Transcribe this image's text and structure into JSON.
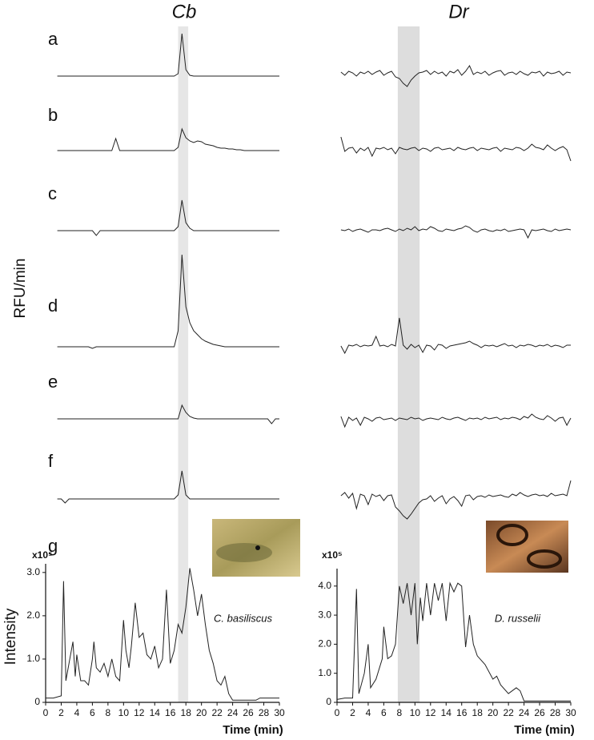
{
  "chart_data": [
    {
      "type": "trace",
      "title": "Cb",
      "ylabel": "RFU/min",
      "panel_labels": [
        "a",
        "b",
        "c",
        "d",
        "e",
        "f"
      ],
      "color": "#222222",
      "x": [
        1.5,
        2,
        2.5,
        3,
        3.5,
        4,
        4.5,
        5,
        5.5,
        6,
        6.5,
        7,
        7.5,
        8,
        8.5,
        9,
        9.5,
        10,
        10.5,
        11,
        11.5,
        12,
        12.5,
        13,
        13.5,
        14,
        14.5,
        15,
        15.5,
        16,
        16.5,
        17,
        17.5,
        18,
        18.5,
        19,
        19.5,
        20,
        20.5,
        21,
        21.5,
        22,
        22.5,
        23,
        23.5,
        24,
        24.5,
        25,
        25.5,
        26,
        26.5,
        27,
        27.5,
        28,
        28.5,
        29,
        29.5,
        30
      ],
      "series": [
        {
          "values": [
            0,
            0,
            0,
            0,
            0,
            0,
            0,
            0,
            0,
            0,
            0,
            0,
            0,
            0,
            0,
            0,
            0,
            0,
            0,
            0,
            0,
            0,
            0,
            0,
            0,
            0,
            0,
            0,
            0,
            0,
            0,
            0.3,
            5.3,
            0.8,
            0.1,
            0,
            0,
            0,
            0,
            0,
            0,
            0,
            0,
            0,
            0,
            0,
            0,
            0,
            0,
            0,
            0,
            0,
            0,
            0,
            0,
            0,
            0,
            0
          ]
        },
        {
          "values": [
            0,
            0,
            0,
            0,
            0,
            0,
            0,
            0,
            0,
            0,
            0,
            0,
            0,
            0,
            0,
            1.5,
            0,
            0,
            0,
            0,
            0,
            0,
            0,
            0,
            0,
            0,
            0,
            0,
            0,
            0,
            0,
            0.4,
            2.7,
            1.6,
            1.2,
            1.0,
            1.2,
            1.1,
            0.8,
            0.7,
            0.6,
            0.4,
            0.3,
            0.3,
            0.2,
            0.2,
            0.1,
            0.1,
            0,
            0,
            0,
            0,
            0,
            0,
            0,
            0,
            0,
            0
          ]
        },
        {
          "values": [
            0,
            0,
            0,
            0,
            0,
            0,
            0,
            0,
            0,
            0,
            -0.6,
            0,
            0,
            0,
            0,
            0,
            0,
            0,
            0,
            0,
            0,
            0,
            0,
            0,
            0,
            0,
            0,
            0,
            0,
            0,
            0,
            0.5,
            3.8,
            1.0,
            0.3,
            0,
            0,
            0,
            0,
            0,
            0,
            0,
            0,
            0,
            0,
            0,
            0,
            0,
            0,
            0,
            0,
            0,
            0,
            0,
            0,
            0,
            0,
            0
          ]
        },
        {
          "values": [
            0,
            0,
            0,
            0,
            0,
            0,
            0,
            0,
            0,
            -0.2,
            0,
            0,
            0,
            0,
            0,
            0,
            0,
            0,
            0,
            0,
            0,
            0,
            0,
            0,
            0,
            0,
            0,
            0,
            0,
            0,
            0,
            2,
            11.5,
            5,
            3,
            2,
            1.5,
            1,
            0.7,
            0.5,
            0.3,
            0.2,
            0.1,
            0,
            0,
            0,
            0,
            0,
            0,
            0,
            0,
            0,
            0,
            0,
            0,
            0,
            0,
            0
          ]
        },
        {
          "values": [
            0,
            0,
            0,
            0,
            0,
            0,
            0,
            0,
            0,
            0,
            0,
            0,
            0,
            0,
            0,
            0,
            0,
            0,
            0,
            0,
            0,
            0,
            0,
            0,
            0,
            0,
            0,
            0,
            0,
            0,
            0,
            0,
            1.7,
            0.8,
            0.3,
            0.1,
            0,
            0,
            0,
            0,
            0,
            0,
            0,
            0,
            0,
            0,
            0,
            0,
            0,
            0,
            0,
            0,
            0,
            0,
            0,
            -0.6,
            0,
            0
          ]
        },
        {
          "values": [
            0,
            0,
            -0.5,
            0,
            0,
            0,
            0,
            0,
            0,
            0,
            0,
            0,
            0,
            0,
            0,
            0,
            0,
            0,
            0,
            0,
            0,
            0,
            0,
            0,
            0,
            0,
            0,
            0,
            0,
            0,
            0,
            0.5,
            3.5,
            0.5,
            0,
            0,
            0,
            0,
            0,
            0,
            0,
            0,
            0,
            0,
            0,
            0,
            0,
            0,
            0,
            0,
            0,
            0,
            0,
            0,
            0,
            0,
            0,
            0
          ]
        }
      ]
    },
    {
      "type": "trace",
      "title": "Dr",
      "color": "#222222",
      "x": [
        0.5,
        1,
        1.5,
        2,
        2.5,
        3,
        3.5,
        4,
        4.5,
        5,
        5.5,
        6,
        6.5,
        7,
        7.5,
        8,
        8.5,
        9,
        9.5,
        10,
        10.5,
        11,
        11.5,
        12,
        12.5,
        13,
        13.5,
        14,
        14.5,
        15,
        15.5,
        16,
        16.5,
        17,
        17.5,
        18,
        18.5,
        19,
        19.5,
        20,
        20.5,
        21,
        21.5,
        22,
        22.5,
        23,
        23.5,
        24,
        24.5,
        25,
        25.5,
        26,
        26.5,
        27,
        27.5,
        28,
        28.5,
        29,
        29.5,
        30
      ],
      "series": [
        {
          "values": [
            0.2,
            -0.2,
            0.3,
            0.1,
            -0.3,
            0.2,
            0,
            0.3,
            -0.1,
            0.2,
            0.4,
            -0.2,
            0.1,
            0.3,
            -0.4,
            -0.6,
            -1.2,
            -1.6,
            -0.8,
            -0.3,
            0.1,
            0.2,
            0.4,
            -0.1,
            0.3,
            0,
            0.2,
            -0.3,
            0.3,
            0.1,
            0.5,
            -0.2,
            0.3,
            1.0,
            -0.1,
            0.2,
            0,
            0.3,
            -0.2,
            0.1,
            0.3,
            0.4,
            -0.2,
            0.1,
            0.2,
            -0.1,
            0.3,
            0,
            -0.2,
            0.2,
            0.1,
            0.3,
            -0.3,
            0.2,
            0,
            0.1,
            0.3,
            -0.2,
            0.2,
            0.1
          ]
        },
        {
          "values": [
            1.5,
            -0.3,
            0.1,
            0.2,
            -0.5,
            0.1,
            -0.2,
            0.2,
            -0.9,
            0.1,
            0,
            0.2,
            -0.1,
            0.1,
            -0.6,
            0.2,
            0,
            -0.1,
            0.1,
            0.2,
            -0.2,
            0.1,
            0,
            -0.3,
            0.1,
            0.2,
            -0.1,
            0,
            0.1,
            -0.2,
            0.2,
            0,
            -0.1,
            0.1,
            0.2,
            -0.2,
            0.1,
            0,
            -0.1,
            0.1,
            0.2,
            -0.3,
            0.1,
            0,
            -0.1,
            0.2,
            0.1,
            -0.2,
            0.1,
            0.6,
            0.2,
            0.1,
            -0.1,
            0.5,
            0.1,
            -0.2,
            0.1,
            0.3,
            -0.1,
            -1.5
          ]
        },
        {
          "values": [
            0.1,
            0,
            0.2,
            -0.1,
            0.1,
            0.2,
            0,
            -0.2,
            0.1,
            0.1,
            0,
            0.2,
            0.3,
            0.1,
            -0.1,
            0.2,
            0,
            0.3,
            0.1,
            0.5,
            0,
            0.2,
            0.1,
            0.5,
            0.3,
            0,
            -0.1,
            0.2,
            0.1,
            0,
            0.2,
            0.3,
            0.6,
            0.4,
            0,
            -0.2,
            0.1,
            0.2,
            0,
            -0.1,
            0.1,
            0,
            0.2,
            -0.1,
            0,
            0.1,
            0.2,
            0.1,
            -0.9,
            0.1,
            0,
            0.1,
            0.2,
            0,
            -0.1,
            0.2,
            0,
            0.1,
            0.2,
            0.1
          ]
        },
        {
          "values": [
            0,
            -0.9,
            0.1,
            0,
            0.2,
            -0.1,
            0.1,
            0,
            0.1,
            1.2,
            0,
            0.1,
            -0.1,
            0.2,
            0,
            3.5,
            0.1,
            -0.4,
            0.2,
            -0.2,
            0.1,
            -0.8,
            0.1,
            0,
            -0.5,
            0.2,
            0.1,
            -0.3,
            0,
            0.1,
            0.2,
            0.3,
            0.4,
            0.6,
            0.3,
            0.1,
            -0.2,
            0.1,
            0,
            0.1,
            -0.1,
            0.1,
            0.3,
            0,
            0.1,
            -0.2,
            0.1,
            0,
            0.2,
            0.1,
            -0.1,
            0.1,
            0,
            0.2,
            -0.1,
            0.1,
            0,
            -0.2,
            0.1,
            0.1
          ]
        },
        {
          "values": [
            0.3,
            -1.0,
            0.2,
            -0.2,
            0.1,
            -0.8,
            0.2,
            0,
            -0.3,
            0.1,
            0.2,
            -0.1,
            0,
            0.1,
            -0.2,
            0.1,
            0,
            -0.1,
            0.2,
            0,
            0.1,
            -0.2,
            0,
            0.1,
            0,
            -0.1,
            0.2,
            0,
            -0.1,
            0.1,
            0.2,
            0,
            -0.2,
            0.1,
            0,
            0.1,
            -0.1,
            0.2,
            0,
            0.1,
            0.2,
            -0.1,
            0.1,
            0,
            0.2,
            0.1,
            -0.1,
            0.3,
            0.1,
            0.6,
            0.2,
            0,
            -0.1,
            0.4,
            0.1,
            -0.3,
            0.1,
            0.2,
            -0.8,
            0.1
          ]
        },
        {
          "values": [
            0.1,
            0.5,
            -0.2,
            0.4,
            -1.5,
            0.3,
            0.1,
            -1.0,
            0.3,
            0,
            0.2,
            -0.5,
            0.1,
            0.2,
            -1.3,
            -1.8,
            -2.4,
            -2.8,
            -2.2,
            -1.5,
            -0.8,
            -0.4,
            -0.3,
            0.1,
            -0.6,
            -0.2,
            0.1,
            -0.9,
            -0.3,
            0,
            -0.5,
            -1.2,
            0.1,
            0.2,
            -0.4,
            0,
            0.1,
            -0.1,
            0.2,
            0,
            0.1,
            0.2,
            0,
            -0.1,
            0.3,
            0.1,
            0.5,
            0.2,
            0,
            0.2,
            0.3,
            0.1,
            0.2,
            0,
            0.4,
            0.1,
            0.2,
            0.3,
            0.1,
            2.0
          ]
        }
      ]
    },
    {
      "type": "line",
      "panel_label": "g",
      "ylabel": "Intensity",
      "scale_label": "x10⁵",
      "xlabel": "Time (min)",
      "annotation": "C. basiliscus",
      "color": "#222222",
      "x": [
        0,
        1,
        2,
        2.3,
        2.6,
        3,
        3.5,
        3.8,
        4,
        4.5,
        5,
        5.5,
        6,
        6.2,
        6.5,
        7,
        7.5,
        8,
        8.5,
        9,
        9.5,
        10,
        10.3,
        10.7,
        11,
        11.5,
        12,
        12.5,
        13,
        13.5,
        14,
        14.5,
        15,
        15.5,
        16,
        16.5,
        17,
        17.5,
        18,
        18.5,
        19,
        19.5,
        20,
        20.5,
        21,
        21.5,
        22,
        22.5,
        23,
        23.5,
        24,
        26,
        27,
        27.5,
        29,
        30
      ],
      "values": [
        0.1,
        0.1,
        0.15,
        2.8,
        0.5,
        0.9,
        1.4,
        0.6,
        1.1,
        0.5,
        0.5,
        0.4,
        1.0,
        1.4,
        0.8,
        0.7,
        0.9,
        0.6,
        1.0,
        0.6,
        0.5,
        1.9,
        1.2,
        0.8,
        1.3,
        2.3,
        1.5,
        1.6,
        1.1,
        1.0,
        1.3,
        0.8,
        1.0,
        2.6,
        0.9,
        1.2,
        1.8,
        1.6,
        2.2,
        3.1,
        2.6,
        2.0,
        2.5,
        1.8,
        1.2,
        0.9,
        0.5,
        0.4,
        0.6,
        0.2,
        0.05,
        0.05,
        0.05,
        0.1,
        0.1,
        0.1
      ],
      "xlim": [
        0,
        30
      ],
      "ylim": [
        0,
        3.2
      ],
      "xticks": [
        0,
        2,
        4,
        6,
        8,
        10,
        12,
        14,
        16,
        18,
        20,
        22,
        24,
        26,
        28,
        30
      ],
      "yticks": [
        0,
        {
          "value": 1,
          "label": "1.0"
        },
        {
          "value": 2,
          "label": "2.0"
        },
        {
          "value": 3,
          "label": "3.0"
        }
      ],
      "highlight_x": [
        17,
        18.3
      ],
      "highlight_color": "#e6e6e6"
    },
    {
      "type": "line",
      "scale_label": "x10⁵",
      "xlabel": "Time (min)",
      "annotation": "D. russelii",
      "color": "#222222",
      "x": [
        0,
        1,
        2,
        2.5,
        2.8,
        3.5,
        4,
        4.3,
        5,
        5.8,
        6,
        6.5,
        7,
        7.5,
        8,
        8.5,
        9,
        9.5,
        10,
        10.3,
        10.7,
        11,
        11.5,
        12,
        12.5,
        13,
        13.5,
        14,
        14.5,
        15,
        15.5,
        16,
        16.5,
        17,
        17.5,
        18,
        19,
        20,
        20.5,
        21,
        22,
        23,
        23.5,
        24,
        26,
        27.5,
        29,
        30
      ],
      "values": [
        0.1,
        0.15,
        0.15,
        3.9,
        0.3,
        1.0,
        2.0,
        0.5,
        0.8,
        1.5,
        2.6,
        1.5,
        1.6,
        2.0,
        4.0,
        3.4,
        4.1,
        3.0,
        4.1,
        2.0,
        3.6,
        2.8,
        4.1,
        3.0,
        4.1,
        3.5,
        4.1,
        2.8,
        4.1,
        3.8,
        4.1,
        4.0,
        1.9,
        3.0,
        2.0,
        1.6,
        1.3,
        0.8,
        0.9,
        0.6,
        0.3,
        0.5,
        0.4,
        0.05,
        0.05,
        0.05,
        0.05,
        0.05
      ],
      "xlim": [
        0,
        30
      ],
      "ylim": [
        0,
        4.6
      ],
      "xticks": [
        0,
        2,
        4,
        6,
        8,
        10,
        12,
        14,
        16,
        18,
        20,
        22,
        24,
        26,
        28,
        30
      ],
      "yticks": [
        0,
        {
          "value": 1,
          "label": "1.0"
        },
        {
          "value": 2,
          "label": "2.0"
        },
        {
          "value": 3,
          "label": "3.0"
        },
        {
          "value": 4,
          "label": "4.0"
        }
      ],
      "highlight_x": [
        7.8,
        10.6
      ],
      "highlight_color": "#dddddd"
    }
  ]
}
